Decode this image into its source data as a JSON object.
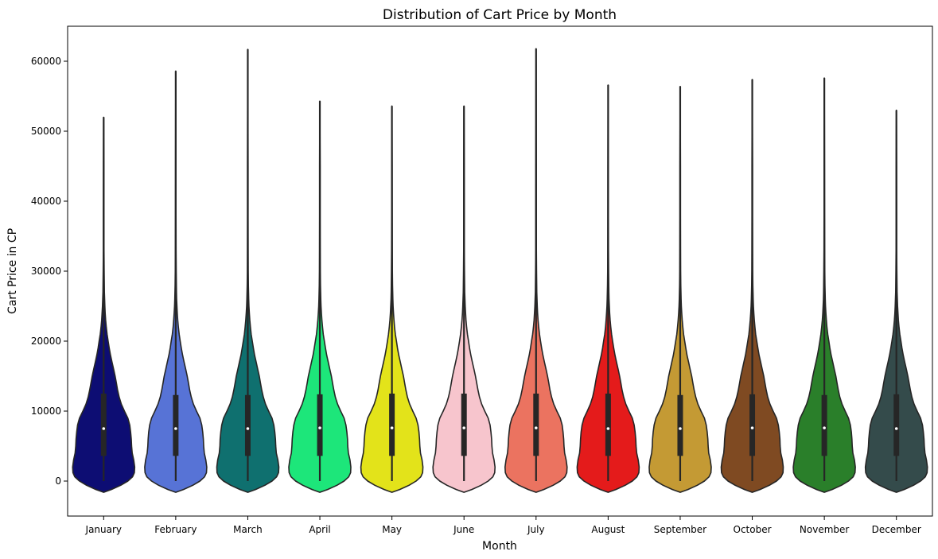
{
  "chart_data": {
    "type": "violin",
    "title": "Distribution of Cart Price by Month",
    "xlabel": "Month",
    "ylabel": "Cart Price in CP",
    "ylim": [
      -5000,
      65000
    ],
    "yticks": [
      0,
      10000,
      20000,
      30000,
      40000,
      50000,
      60000
    ],
    "ytick_labels": [
      "0",
      "10000",
      "20000",
      "30000",
      "40000",
      "50000",
      "60000"
    ],
    "grid": false,
    "legend": "none",
    "categories": [
      "January",
      "February",
      "March",
      "April",
      "May",
      "June",
      "July",
      "August",
      "September",
      "October",
      "November",
      "December"
    ],
    "colors": [
      "#0d0d73",
      "#5773d6",
      "#0f706f",
      "#1de67a",
      "#e3e31a",
      "#f7c5cd",
      "#eb7360",
      "#e41b1b",
      "#c49a34",
      "#7f4a22",
      "#2a7f2a",
      "#344b4b"
    ],
    "series": [
      {
        "min": -1600,
        "q1": 3600,
        "median": 7500,
        "q3": 12500,
        "max": 52000
      },
      {
        "min": -1600,
        "q1": 3600,
        "median": 7500,
        "q3": 12300,
        "max": 58600
      },
      {
        "min": -1600,
        "q1": 3600,
        "median": 7500,
        "q3": 12300,
        "max": 61700
      },
      {
        "min": -1600,
        "q1": 3600,
        "median": 7600,
        "q3": 12400,
        "max": 54300
      },
      {
        "min": -1600,
        "q1": 3600,
        "median": 7600,
        "q3": 12500,
        "max": 53600
      },
      {
        "min": -1600,
        "q1": 3600,
        "median": 7600,
        "q3": 12500,
        "max": 53600
      },
      {
        "min": -1600,
        "q1": 3600,
        "median": 7600,
        "q3": 12500,
        "max": 61800
      },
      {
        "min": -1600,
        "q1": 3600,
        "median": 7500,
        "q3": 12500,
        "max": 56600
      },
      {
        "min": -1600,
        "q1": 3600,
        "median": 7500,
        "q3": 12300,
        "max": 56400
      },
      {
        "min": -1600,
        "q1": 3600,
        "median": 7600,
        "q3": 12400,
        "max": 57400
      },
      {
        "min": -1600,
        "q1": 3600,
        "median": 7600,
        "q3": 12300,
        "max": 57600
      },
      {
        "min": -1600,
        "q1": 3600,
        "median": 7500,
        "q3": 12400,
        "max": 53000
      }
    ]
  }
}
